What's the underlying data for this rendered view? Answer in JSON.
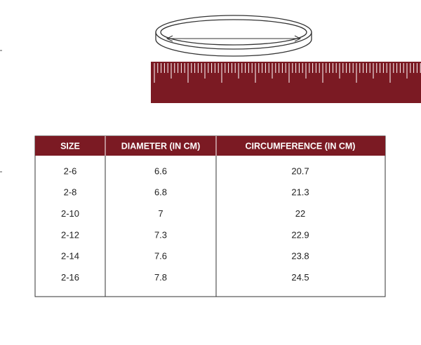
{
  "table": {
    "headers": [
      "SIZE",
      "DIAMETER (IN CM)",
      "CIRCUMFERENCE (IN CM)"
    ],
    "rows": [
      [
        "2-6",
        "6.6",
        "20.7"
      ],
      [
        "2-8",
        "6.8",
        "21.3"
      ],
      [
        "2-10",
        "7",
        "22"
      ],
      [
        "2-12",
        "7.3",
        "22.9"
      ],
      [
        "2-14",
        "7.6",
        "23.8"
      ],
      [
        "2-16",
        "7.8",
        "24.5"
      ]
    ]
  }
}
